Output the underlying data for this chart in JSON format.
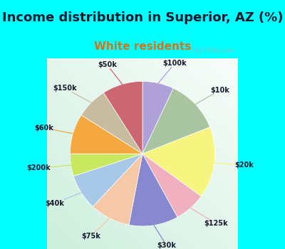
{
  "title": "Income distribution in Superior, AZ (%)",
  "subtitle": "White residents",
  "background_top": "#00FFFF",
  "labels": [
    "$100k",
    "$10k",
    "$20k",
    "$125k",
    "$30k",
    "$75k",
    "$40k",
    "$200k",
    "$60k",
    "$150k",
    "$50k"
  ],
  "sizes": [
    7,
    12,
    16,
    7,
    11,
    9,
    8,
    5,
    9,
    7,
    9
  ],
  "colors": [
    "#b0a0d8",
    "#a8c4a0",
    "#f5f580",
    "#f0b0c0",
    "#8888d0",
    "#f5c8a8",
    "#a8c8e8",
    "#c8e860",
    "#f5a840",
    "#c8bca0",
    "#cc6670"
  ],
  "watermark": "City-Data.com",
  "startangle": 90,
  "label_distance": 1.28,
  "title_fontsize": 13,
  "subtitle_fontsize": 11,
  "subtitle_color": "#cc7722",
  "title_color": "#1a1a2e"
}
